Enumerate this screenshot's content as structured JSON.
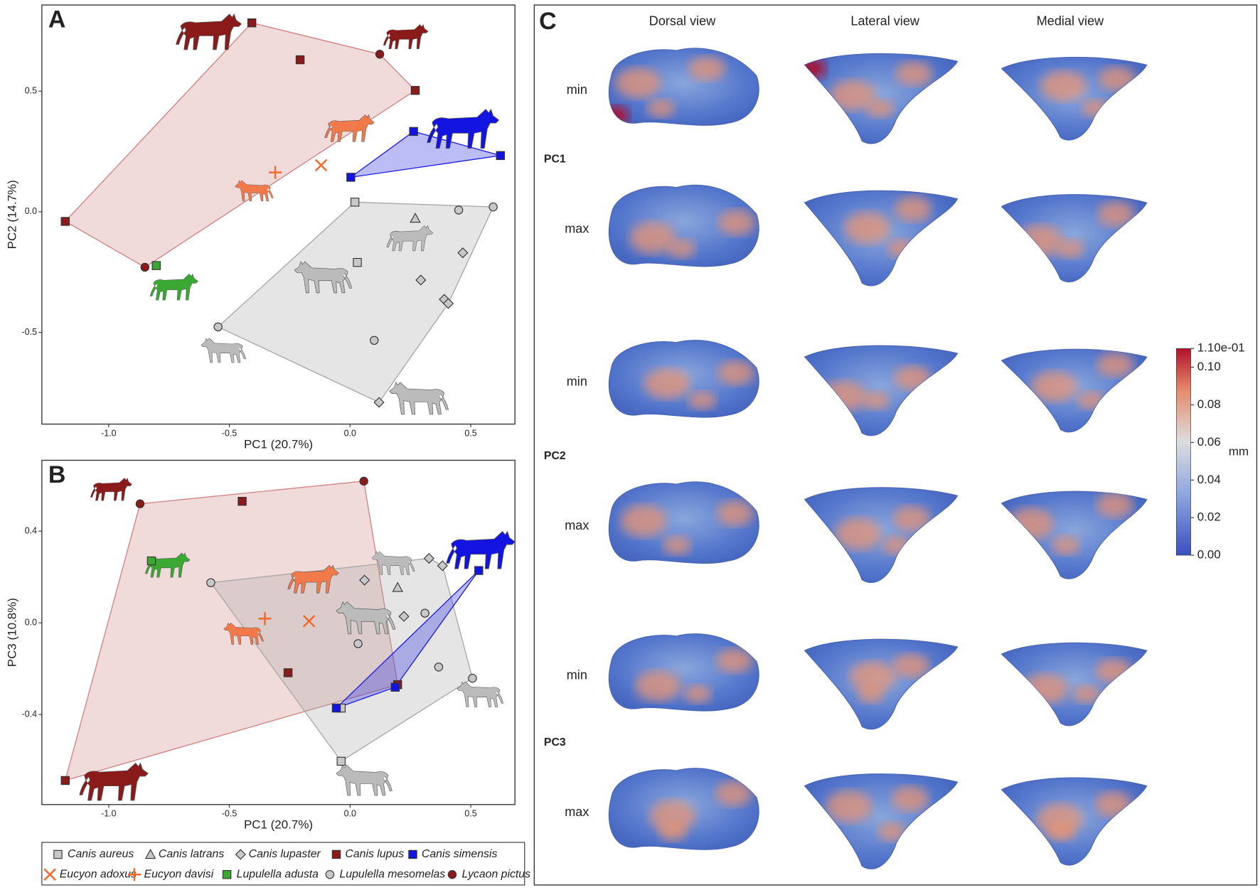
{
  "chart_data": [
    {
      "type": "scatter",
      "panel": "A",
      "xlabel": "PC1 (20.7%)",
      "ylabel": "PC2 (14.7%)",
      "xlim": [
        -1.277,
        0.683
      ],
      "ylim": [
        -0.88,
        0.857
      ],
      "xticks": [
        {
          "value": -1,
          "label": "-1.0"
        },
        -0.5,
        {
          "value": 0,
          "label": "0.0"
        },
        0.5
      ],
      "yticks": [
        0.5,
        {
          "value": 0,
          "label": "0.0"
        },
        -0.5
      ],
      "series": [
        {
          "x": [
            0.02,
            0.03
          ],
          "y": [
            0.04,
            -0.21
          ]
        },
        {
          "x": [
            0.27
          ],
          "y": [
            -0.027
          ]
        },
        {
          "x": [
            0.467,
            0.293,
            0.39,
            0.407,
            0.12
          ],
          "y": [
            -0.17,
            -0.283,
            -0.363,
            -0.38,
            -0.79
          ]
        },
        {
          "x": [
            -0.407,
            -0.207,
            0.27,
            -1.18
          ],
          "y": [
            0.783,
            0.63,
            0.503,
            -0.04
          ]
        },
        {
          "x": [
            0.263,
            0.623,
            0.003
          ],
          "y": [
            0.333,
            0.233,
            0.143
          ]
        },
        {
          "x": [
            -0.12
          ],
          "y": [
            0.193
          ]
        },
        {
          "x": [
            -0.31
          ],
          "y": [
            0.163
          ]
        },
        {
          "x": [
            -0.803
          ],
          "y": [
            -0.223
          ]
        },
        {
          "x": [
            0.45,
            0.593,
            -0.547,
            0.1
          ],
          "y": [
            0.007,
            0.02,
            -0.477,
            -0.533
          ]
        },
        {
          "x": [
            0.123,
            -0.85
          ],
          "y": [
            0.653,
            -0.23
          ]
        }
      ]
    },
    {
      "type": "scatter",
      "panel": "B",
      "xlabel": "PC1 (20.7%)",
      "ylabel": "PC3 (10.8%)",
      "xlim": [
        -1.277,
        0.683
      ],
      "ylim": [
        -0.793,
        0.709
      ],
      "xticks": [
        {
          "value": -1,
          "label": "-1.0"
        },
        -0.5,
        {
          "value": 0,
          "label": "0.0"
        },
        0.5
      ],
      "yticks": [
        0.4,
        {
          "value": 0,
          "label": "0.0"
        },
        -0.4
      ],
      "series": [
        {
          "x": [
            -0.037,
            -0.037
          ],
          "y": [
            -0.372,
            -0.604
          ]
        },
        {
          "x": [
            0.197
          ],
          "y": [
            0.154
          ]
        },
        {
          "x": [
            0.327,
            0.383,
            0.06,
            0.223
          ],
          "y": [
            0.281,
            0.249,
            0.186,
            0.028
          ]
        },
        {
          "x": [
            -0.447,
            -1.18,
            -0.257,
            0.197
          ],
          "y": [
            0.53,
            -0.688,
            -0.218,
            -0.27
          ]
        },
        {
          "x": [
            0.533,
            0.187,
            -0.057
          ],
          "y": [
            0.228,
            -0.281,
            -0.372
          ]
        },
        {
          "x": [
            -0.17
          ],
          "y": [
            0.007
          ]
        },
        {
          "x": [
            -0.353
          ],
          "y": [
            0.018
          ]
        },
        {
          "x": [
            -0.823
          ],
          "y": [
            0.27
          ]
        },
        {
          "x": [
            -0.577,
            0.31,
            0.033,
            0.367,
            0.507
          ],
          "y": [
            0.175,
            0.042,
            -0.091,
            -0.193,
            -0.242
          ]
        },
        {
          "x": [
            0.057,
            -0.87
          ],
          "y": [
            0.618,
            0.519
          ]
        }
      ]
    }
  ],
  "legend": {
    "entries": [
      {
        "name": "Canis aureus",
        "color": "#c8c8c8",
        "marker": "square"
      },
      {
        "name": "Canis latrans",
        "color": "#c8c8c8",
        "marker": "triangle"
      },
      {
        "name": "Canis lupaster",
        "color": "#c8c8c8",
        "marker": "diamond"
      },
      {
        "name": "Canis lupus",
        "color": "#8b1a1a",
        "marker": "square"
      },
      {
        "name": "Canis simensis",
        "color": "#1414e0",
        "marker": "square"
      },
      {
        "name": "Eucyon adoxus",
        "color": "#f06a2a",
        "marker": "x"
      },
      {
        "name": "Eucyon davisi",
        "color": "#f06a2a",
        "marker": "plus"
      },
      {
        "name": "Lupulella adusta",
        "color": "#3aa832",
        "marker": "square"
      },
      {
        "name": "Lupulella mesomelas",
        "color": "#c8c8c8",
        "marker": "circle"
      },
      {
        "name": "Lycaon pictus",
        "color": "#8b1a1a",
        "marker": "circle"
      }
    ]
  },
  "hulls": [
    {
      "members": [
        "Canis lupus",
        "Lycaon pictus"
      ],
      "color": "#d08484"
    },
    {
      "members": [
        "Canis aureus",
        "Canis latrans",
        "Canis lupaster",
        "Lupulella mesomelas"
      ],
      "color": "#a8a8a8"
    },
    {
      "members": [
        "Canis simensis"
      ],
      "color": "#2020e0"
    }
  ],
  "panel_c": {
    "label": "C",
    "views": [
      "Dorsal view",
      "Lateral view",
      "Medial view"
    ],
    "rows": [
      "min",
      "max",
      "min",
      "max",
      "min",
      "max"
    ],
    "pcs": [
      "PC1",
      "PC2",
      "PC3"
    ],
    "colorbar": {
      "label": "mm",
      "lim": [
        0,
        0.11
      ],
      "ticks": [
        {
          "value": 0.11,
          "label": "1.10e-01"
        },
        {
          "value": 0.1,
          "label": "0.10"
        },
        {
          "value": 0.08,
          "label": "0.08"
        },
        {
          "value": 0.06,
          "label": "0.06"
        },
        {
          "value": 0.04,
          "label": "0.04"
        },
        {
          "value": 0.02,
          "label": "0.02"
        },
        {
          "value": 0,
          "label": "0.00"
        }
      ]
    }
  }
}
